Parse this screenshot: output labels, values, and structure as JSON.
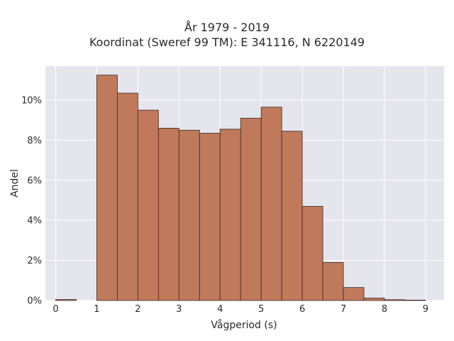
{
  "chart_data": {
    "type": "bar",
    "title": "År 1979 - 2019",
    "subtitle": "Koordinat (Sweref 99 TM): E 341116, N 6220149",
    "xlabel": "Vågperiod (s)",
    "ylabel": "Andel",
    "bin_width": 0.5,
    "xlim": [
      -0.25,
      9.45
    ],
    "ylim": [
      0,
      11.7
    ],
    "x_ticks": [
      0,
      1,
      2,
      3,
      4,
      5,
      6,
      7,
      8,
      9
    ],
    "y_ticks": [
      0,
      2,
      4,
      6,
      8,
      10
    ],
    "y_tick_suffix": "%",
    "bins": [
      {
        "start": 0.0,
        "value": 0.05
      },
      {
        "start": 1.0,
        "value": 11.25
      },
      {
        "start": 1.5,
        "value": 10.35
      },
      {
        "start": 2.0,
        "value": 9.5
      },
      {
        "start": 2.5,
        "value": 8.6
      },
      {
        "start": 3.0,
        "value": 8.5
      },
      {
        "start": 3.5,
        "value": 8.35
      },
      {
        "start": 4.0,
        "value": 8.55
      },
      {
        "start": 4.5,
        "value": 9.1
      },
      {
        "start": 5.0,
        "value": 9.65
      },
      {
        "start": 5.5,
        "value": 8.45
      },
      {
        "start": 6.0,
        "value": 4.7
      },
      {
        "start": 6.5,
        "value": 1.9
      },
      {
        "start": 7.0,
        "value": 0.65
      },
      {
        "start": 7.5,
        "value": 0.12
      },
      {
        "start": 8.0,
        "value": 0.04
      },
      {
        "start": 8.5,
        "value": 0.02
      }
    ],
    "grid": true,
    "colors": {
      "bar_fill": "#c0795a",
      "bar_edge": "#3c2a20",
      "plot_bg": "#e5e5ee",
      "grid": "#ffffff"
    }
  }
}
